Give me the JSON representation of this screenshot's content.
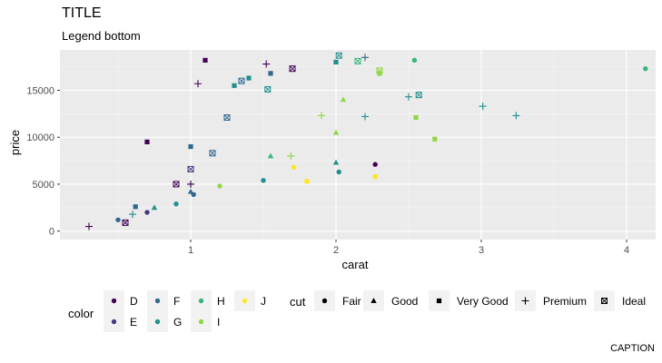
{
  "chart_data": {
    "type": "scatter",
    "title": "TITLE",
    "subtitle": "Legend bottom",
    "caption": "CAPTION",
    "xlabel": "carat",
    "ylabel": "price",
    "xlim": [
      0.1,
      4.2
    ],
    "ylim": [
      -900,
      19300
    ],
    "x_ticks": [
      1,
      2,
      3,
      4
    ],
    "y_ticks": [
      0,
      5000,
      10000,
      15000
    ],
    "y_tick_labels": [
      "0",
      "5000",
      "10000",
      "15000"
    ],
    "grid": true,
    "legend_position": "bottom",
    "color_legend": {
      "title": "color",
      "entries": [
        {
          "label": "D",
          "color": "#440154"
        },
        {
          "label": "E",
          "color": "#443a83"
        },
        {
          "label": "F",
          "color": "#31688e"
        },
        {
          "label": "G",
          "color": "#21908d"
        },
        {
          "label": "H",
          "color": "#35b779"
        },
        {
          "label": "I",
          "color": "#8fd744"
        },
        {
          "label": "J",
          "color": "#fde725"
        }
      ]
    },
    "shape_legend": {
      "title": "cut",
      "entries": [
        {
          "label": "Fair",
          "shape": "circle"
        },
        {
          "label": "Good",
          "shape": "triangle"
        },
        {
          "label": "Very Good",
          "shape": "square"
        },
        {
          "label": "Premium",
          "shape": "plus"
        },
        {
          "label": "Ideal",
          "shape": "boxed-x"
        }
      ]
    },
    "series": [
      {
        "name": "Fair",
        "shape": "circle",
        "points": [
          {
            "x": 4.13,
            "y": 17300,
            "c": "H"
          },
          {
            "x": 2.54,
            "y": 18200,
            "c": "H"
          },
          {
            "x": 2.27,
            "y": 7100,
            "c": "D"
          },
          {
            "x": 2.02,
            "y": 6300,
            "c": "G"
          },
          {
            "x": 1.5,
            "y": 5400,
            "c": "G"
          },
          {
            "x": 1.02,
            "y": 3900,
            "c": "F"
          },
          {
            "x": 0.9,
            "y": 2900,
            "c": "G"
          },
          {
            "x": 0.7,
            "y": 2000,
            "c": "E"
          },
          {
            "x": 1.2,
            "y": 4800,
            "c": "I"
          },
          {
            "x": 0.5,
            "y": 1200,
            "c": "F"
          },
          {
            "x": 1.71,
            "y": 6800,
            "c": "J"
          }
        ]
      },
      {
        "name": "Good",
        "shape": "triangle",
        "points": [
          {
            "x": 2.0,
            "y": 7300,
            "c": "G"
          },
          {
            "x": 2.0,
            "y": 10500,
            "c": "I"
          },
          {
            "x": 1.55,
            "y": 8000,
            "c": "H"
          },
          {
            "x": 1.0,
            "y": 4200,
            "c": "F"
          },
          {
            "x": 0.75,
            "y": 2500,
            "c": "G"
          },
          {
            "x": 2.05,
            "y": 14000,
            "c": "I"
          }
        ]
      },
      {
        "name": "Very Good",
        "shape": "square",
        "points": [
          {
            "x": 1.1,
            "y": 18200,
            "c": "D"
          },
          {
            "x": 2.68,
            "y": 9800,
            "c": "I"
          },
          {
            "x": 2.55,
            "y": 12100,
            "c": "I"
          },
          {
            "x": 2.27,
            "y": 5800,
            "c": "J"
          },
          {
            "x": 1.8,
            "y": 5300,
            "c": "J"
          },
          {
            "x": 1.4,
            "y": 16300,
            "c": "G"
          },
          {
            "x": 1.55,
            "y": 16800,
            "c": "F"
          },
          {
            "x": 1.3,
            "y": 15500,
            "c": "G"
          },
          {
            "x": 2.0,
            "y": 18000,
            "c": "G"
          },
          {
            "x": 2.3,
            "y": 16800,
            "c": "I"
          },
          {
            "x": 0.7,
            "y": 9500,
            "c": "D"
          },
          {
            "x": 0.62,
            "y": 2600,
            "c": "F"
          },
          {
            "x": 1.0,
            "y": 9000,
            "c": "F"
          }
        ]
      },
      {
        "name": "Premium",
        "shape": "plus",
        "points": [
          {
            "x": 0.3,
            "y": 500,
            "c": "D"
          },
          {
            "x": 0.6,
            "y": 1800,
            "c": "G"
          },
          {
            "x": 1.05,
            "y": 15700,
            "c": "D"
          },
          {
            "x": 1.52,
            "y": 17800,
            "c": "D"
          },
          {
            "x": 1.0,
            "y": 5000,
            "c": "D"
          },
          {
            "x": 2.2,
            "y": 18500,
            "c": "F"
          },
          {
            "x": 2.2,
            "y": 12200,
            "c": "G"
          },
          {
            "x": 2.5,
            "y": 14300,
            "c": "G"
          },
          {
            "x": 3.01,
            "y": 13300,
            "c": "G"
          },
          {
            "x": 3.24,
            "y": 12300,
            "c": "G"
          },
          {
            "x": 1.9,
            "y": 12300,
            "c": "I"
          },
          {
            "x": 1.69,
            "y": 8000,
            "c": "I"
          }
        ]
      },
      {
        "name": "Ideal",
        "shape": "boxed-x",
        "points": [
          {
            "x": 1.35,
            "y": 16000,
            "c": "F"
          },
          {
            "x": 1.53,
            "y": 15100,
            "c": "G"
          },
          {
            "x": 1.7,
            "y": 17300,
            "c": "D"
          },
          {
            "x": 2.02,
            "y": 18700,
            "c": "G"
          },
          {
            "x": 2.57,
            "y": 14500,
            "c": "G"
          },
          {
            "x": 2.15,
            "y": 18100,
            "c": "H"
          },
          {
            "x": 2.3,
            "y": 17100,
            "c": "I"
          },
          {
            "x": 0.55,
            "y": 900,
            "c": "D"
          },
          {
            "x": 0.9,
            "y": 5000,
            "c": "D"
          },
          {
            "x": 1.0,
            "y": 6600,
            "c": "E"
          },
          {
            "x": 1.15,
            "y": 8300,
            "c": "F"
          },
          {
            "x": 1.25,
            "y": 12100,
            "c": "F"
          }
        ]
      }
    ]
  }
}
